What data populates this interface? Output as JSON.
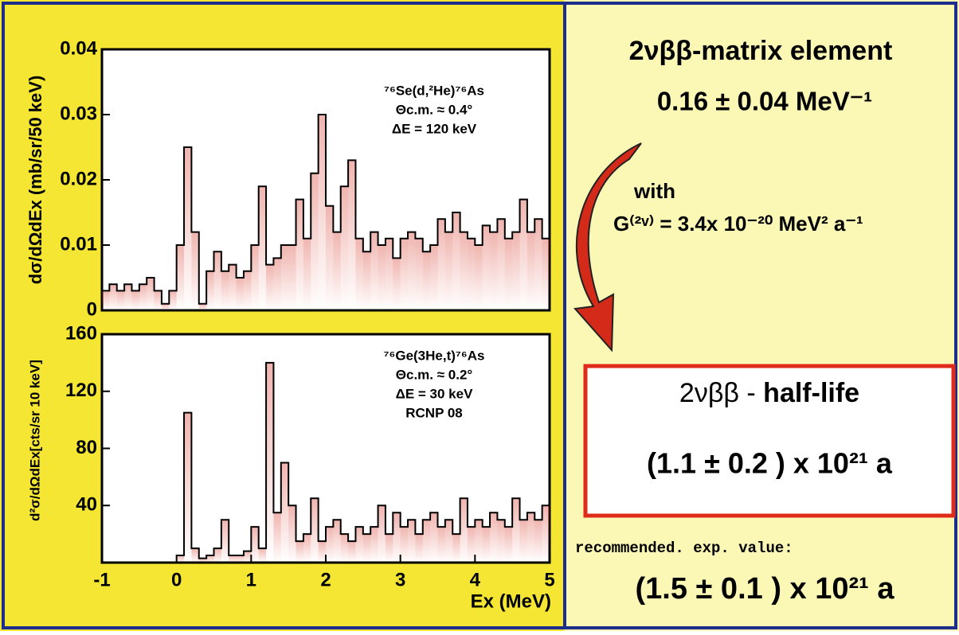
{
  "chart_data": [
    {
      "type": "step",
      "ylabel": "dσ/dΩdEx (mb/sr/50 keV)",
      "annotations": [
        "⁷⁶Se(d,²He)⁷⁶As",
        "Θc.m. ≈ 0.4°",
        "ΔE = 120 keV"
      ],
      "xlim": [
        -1,
        5
      ],
      "ylim": [
        0,
        0.04
      ],
      "yticks": [
        0,
        0.01,
        0.02,
        0.03,
        0.04
      ],
      "color": "#000000",
      "peak_color": "#d42a1a",
      "x": [
        -1.0,
        -0.9,
        -0.8,
        -0.7,
        -0.6,
        -0.5,
        -0.4,
        -0.3,
        -0.2,
        -0.1,
        0.0,
        0.1,
        0.2,
        0.3,
        0.4,
        0.5,
        0.6,
        0.7,
        0.8,
        0.9,
        1.0,
        1.1,
        1.2,
        1.3,
        1.4,
        1.5,
        1.6,
        1.7,
        1.8,
        1.9,
        2.0,
        2.1,
        2.2,
        2.3,
        2.4,
        2.5,
        2.6,
        2.7,
        2.8,
        2.9,
        3.0,
        3.1,
        3.2,
        3.3,
        3.4,
        3.5,
        3.6,
        3.7,
        3.8,
        3.9,
        4.0,
        4.1,
        4.2,
        4.3,
        4.4,
        4.5,
        4.6,
        4.7,
        4.8,
        4.9
      ],
      "values": [
        0.003,
        0.004,
        0.003,
        0.004,
        0.003,
        0.004,
        0.005,
        0.003,
        0.001,
        0.003,
        0.01,
        0.025,
        0.012,
        0.001,
        0.006,
        0.009,
        0.006,
        0.007,
        0.005,
        0.006,
        0.01,
        0.019,
        0.007,
        0.008,
        0.01,
        0.01,
        0.017,
        0.011,
        0.021,
        0.03,
        0.016,
        0.012,
        0.019,
        0.023,
        0.011,
        0.009,
        0.012,
        0.01,
        0.011,
        0.008,
        0.011,
        0.012,
        0.011,
        0.009,
        0.01,
        0.014,
        0.012,
        0.015,
        0.012,
        0.011,
        0.01,
        0.013,
        0.012,
        0.014,
        0.011,
        0.012,
        0.017,
        0.012,
        0.014,
        0.011
      ]
    },
    {
      "type": "step",
      "ylabel": "d²σ/dΩdEx[cts/sr 10 keV]",
      "xlabel": "Ex (MeV)",
      "annotations": [
        "⁷⁶Ge(3He,t)⁷⁶As",
        "Θc.m. ≈ 0.2°",
        "ΔE = 30 keV",
        "RCNP 08"
      ],
      "xlim": [
        -1,
        5
      ],
      "ylim": [
        0,
        160
      ],
      "yticks": [
        40,
        80,
        120,
        160
      ],
      "xticks": [
        -1,
        0,
        1,
        2,
        3,
        4,
        5
      ],
      "color": "#000000",
      "peak_color": "#d42a1a",
      "x": [
        0.0,
        0.1,
        0.2,
        0.3,
        0.4,
        0.5,
        0.6,
        0.7,
        0.8,
        0.9,
        1.0,
        1.1,
        1.2,
        1.3,
        1.4,
        1.5,
        1.6,
        1.7,
        1.8,
        1.9,
        2.0,
        2.1,
        2.2,
        2.3,
        2.4,
        2.5,
        2.6,
        2.7,
        2.8,
        2.9,
        3.0,
        3.1,
        3.2,
        3.3,
        3.4,
        3.5,
        3.6,
        3.7,
        3.8,
        3.9,
        4.0,
        4.1,
        4.2,
        4.3,
        4.4,
        4.5,
        4.6,
        4.7,
        4.8,
        4.9
      ],
      "values": [
        5,
        105,
        10,
        3,
        5,
        10,
        30,
        5,
        5,
        8,
        25,
        10,
        140,
        35,
        70,
        40,
        15,
        20,
        45,
        15,
        25,
        30,
        20,
        15,
        25,
        20,
        25,
        40,
        20,
        35,
        25,
        30,
        20,
        30,
        35,
        25,
        30,
        20,
        45,
        25,
        30,
        25,
        35,
        30,
        25,
        45,
        30,
        35,
        30,
        40
      ]
    }
  ],
  "panel": {
    "heading": "2νββ-matrix element",
    "matrix_element": "0.16 ± 0.04 MeV⁻¹",
    "with": "with",
    "phase_space": "G⁽²ᵛ⁾ = 3.4x 10⁻²⁰ MeV² a⁻¹",
    "box_title_a": "2νββ - ",
    "box_title_b": "half-life",
    "half_life": "(1.1 ± 0.2 ) x 10²¹ a",
    "recommended": "recommended. exp. value:",
    "recommended_value": "(1.5 ± 0.1 ) x 10²¹ a"
  }
}
